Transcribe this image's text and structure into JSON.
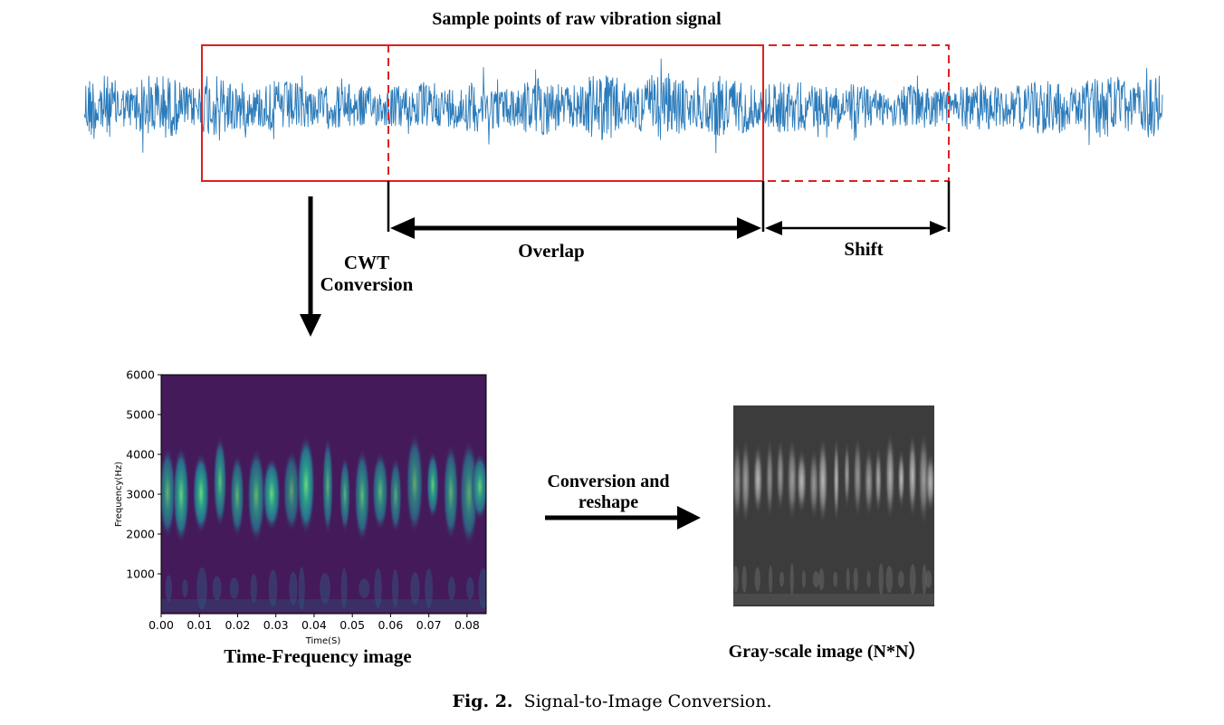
{
  "signal_title": "Sample points of raw vibration signal",
  "labels": {
    "overlap": "Overlap",
    "shift": "Shift",
    "cwt_line1": "CWT",
    "cwt_line2": "Conversion",
    "conv_line1": "Conversion and",
    "conv_line2": "reshape"
  },
  "spectrogram": {
    "caption": "Time-Frequency image",
    "xlabel": "Time(S)",
    "ylabel": "Frequency(Hz)",
    "x_ticks": [
      "0.00",
      "0.01",
      "0.02",
      "0.03",
      "0.04",
      "0.05",
      "0.06",
      "0.07",
      "0.08"
    ],
    "y_ticks": [
      "1000",
      "2000",
      "3000",
      "4000",
      "5000",
      "6000"
    ],
    "xlim": [
      0,
      0.085
    ],
    "ylim": [
      0,
      6000
    ]
  },
  "grayscale": {
    "caption": "Gray-scale image (N*N）"
  },
  "figure_caption": {
    "label": "Fig. 2.",
    "text": "Signal-to-Image Conversion."
  },
  "colors": {
    "signal": "#2b7bba",
    "window_solid": "#e02020",
    "window_dashed": "#e02020",
    "spectro_bg": "#441a5a",
    "gray_bg": "#3c3c3c"
  }
}
